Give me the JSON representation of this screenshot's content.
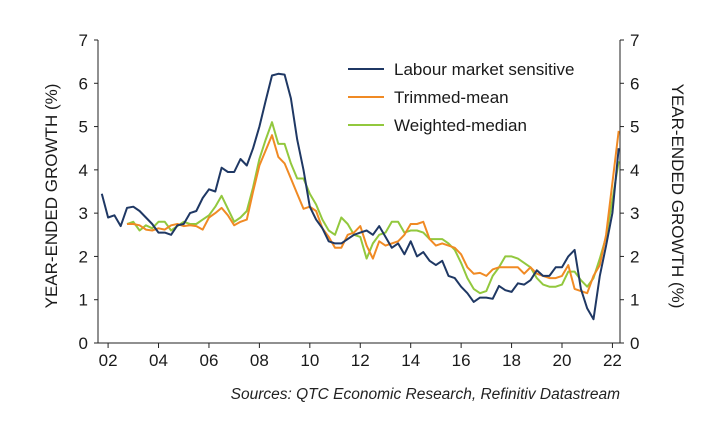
{
  "chart_data": {
    "type": "line",
    "ylabel_left": "YEAR-ENDED GROWTH (%)",
    "ylabel_right": "YEAR-ENDED GROWTH (%)",
    "ylim": [
      0,
      7
    ],
    "xlim": [
      2001.6,
      2022.3
    ],
    "y_ticks": [
      "0",
      "1",
      "2",
      "3",
      "4",
      "5",
      "6",
      "7"
    ],
    "x_ticks": [
      {
        "value": 2002,
        "label": "02"
      },
      {
        "value": 2004,
        "label": "04"
      },
      {
        "value": 2006,
        "label": "06"
      },
      {
        "value": 2008,
        "label": "08"
      },
      {
        "value": 2010,
        "label": "10"
      },
      {
        "value": 2012,
        "label": "12"
      },
      {
        "value": 2014,
        "label": "14"
      },
      {
        "value": 2016,
        "label": "16"
      },
      {
        "value": 2018,
        "label": "18"
      },
      {
        "value": 2020,
        "label": "20"
      },
      {
        "value": 2022,
        "label": "22"
      }
    ],
    "legend_position": "top-right",
    "grid": false,
    "series": [
      {
        "name": "Labour market sensitive",
        "color": "#1f3864",
        "points": [
          [
            2001.75,
            3.45
          ],
          [
            2002.0,
            2.9
          ],
          [
            2002.25,
            2.95
          ],
          [
            2002.5,
            2.7
          ],
          [
            2002.75,
            3.12
          ],
          [
            2003.0,
            3.15
          ],
          [
            2003.25,
            3.05
          ],
          [
            2003.5,
            2.9
          ],
          [
            2003.75,
            2.75
          ],
          [
            2004.0,
            2.55
          ],
          [
            2004.25,
            2.55
          ],
          [
            2004.5,
            2.5
          ],
          [
            2004.75,
            2.72
          ],
          [
            2005.0,
            2.75
          ],
          [
            2005.25,
            3.0
          ],
          [
            2005.5,
            3.05
          ],
          [
            2005.75,
            3.35
          ],
          [
            2006.0,
            3.55
          ],
          [
            2006.25,
            3.5
          ],
          [
            2006.5,
            4.05
          ],
          [
            2006.75,
            3.95
          ],
          [
            2007.0,
            3.95
          ],
          [
            2007.25,
            4.25
          ],
          [
            2007.5,
            4.1
          ],
          [
            2007.75,
            4.5
          ],
          [
            2008.0,
            5.0
          ],
          [
            2008.25,
            5.6
          ],
          [
            2008.5,
            6.18
          ],
          [
            2008.75,
            6.22
          ],
          [
            2009.0,
            6.2
          ],
          [
            2009.25,
            5.65
          ],
          [
            2009.5,
            4.7
          ],
          [
            2009.75,
            4.0
          ],
          [
            2010.0,
            3.15
          ],
          [
            2010.25,
            2.85
          ],
          [
            2010.5,
            2.65
          ],
          [
            2010.75,
            2.35
          ],
          [
            2011.0,
            2.3
          ],
          [
            2011.25,
            2.3
          ],
          [
            2011.5,
            2.4
          ],
          [
            2011.75,
            2.5
          ],
          [
            2012.0,
            2.55
          ],
          [
            2012.25,
            2.6
          ],
          [
            2012.5,
            2.5
          ],
          [
            2012.75,
            2.7
          ],
          [
            2013.0,
            2.45
          ],
          [
            2013.25,
            2.2
          ],
          [
            2013.5,
            2.3
          ],
          [
            2013.75,
            2.05
          ],
          [
            2014.0,
            2.35
          ],
          [
            2014.25,
            2.0
          ],
          [
            2014.5,
            2.1
          ],
          [
            2014.75,
            1.9
          ],
          [
            2015.0,
            1.8
          ],
          [
            2015.25,
            1.9
          ],
          [
            2015.5,
            1.55
          ],
          [
            2015.75,
            1.5
          ],
          [
            2016.0,
            1.3
          ],
          [
            2016.25,
            1.15
          ],
          [
            2016.5,
            0.95
          ],
          [
            2016.75,
            1.05
          ],
          [
            2017.0,
            1.05
          ],
          [
            2017.25,
            1.02
          ],
          [
            2017.5,
            1.32
          ],
          [
            2017.75,
            1.22
          ],
          [
            2018.0,
            1.18
          ],
          [
            2018.25,
            1.38
          ],
          [
            2018.5,
            1.35
          ],
          [
            2018.75,
            1.45
          ],
          [
            2019.0,
            1.68
          ],
          [
            2019.25,
            1.55
          ],
          [
            2019.5,
            1.55
          ],
          [
            2019.75,
            1.75
          ],
          [
            2020.0,
            1.75
          ],
          [
            2020.25,
            2.0
          ],
          [
            2020.5,
            2.15
          ],
          [
            2020.75,
            1.25
          ],
          [
            2021.0,
            0.8
          ],
          [
            2021.25,
            0.55
          ],
          [
            2021.5,
            1.55
          ],
          [
            2021.75,
            2.25
          ],
          [
            2022.0,
            3.0
          ],
          [
            2022.25,
            4.5
          ]
        ]
      },
      {
        "name": "Trimmed-mean",
        "color": "#f08a24",
        "points": [
          [
            2002.75,
            2.75
          ],
          [
            2003.0,
            2.75
          ],
          [
            2003.25,
            2.72
          ],
          [
            2003.5,
            2.62
          ],
          [
            2003.75,
            2.6
          ],
          [
            2004.0,
            2.65
          ],
          [
            2004.25,
            2.62
          ],
          [
            2004.5,
            2.72
          ],
          [
            2004.75,
            2.75
          ],
          [
            2005.0,
            2.7
          ],
          [
            2005.25,
            2.72
          ],
          [
            2005.5,
            2.7
          ],
          [
            2005.75,
            2.62
          ],
          [
            2006.0,
            2.9
          ],
          [
            2006.25,
            3.0
          ],
          [
            2006.5,
            3.12
          ],
          [
            2006.75,
            2.95
          ],
          [
            2007.0,
            2.72
          ],
          [
            2007.25,
            2.8
          ],
          [
            2007.5,
            2.85
          ],
          [
            2007.75,
            3.5
          ],
          [
            2008.0,
            4.1
          ],
          [
            2008.25,
            4.45
          ],
          [
            2008.5,
            4.8
          ],
          [
            2008.75,
            4.3
          ],
          [
            2009.0,
            4.15
          ],
          [
            2009.25,
            3.8
          ],
          [
            2009.5,
            3.45
          ],
          [
            2009.75,
            3.1
          ],
          [
            2010.0,
            3.15
          ],
          [
            2010.25,
            3.05
          ],
          [
            2010.5,
            2.65
          ],
          [
            2010.75,
            2.45
          ],
          [
            2011.0,
            2.2
          ],
          [
            2011.25,
            2.2
          ],
          [
            2011.5,
            2.5
          ],
          [
            2011.75,
            2.55
          ],
          [
            2012.0,
            2.7
          ],
          [
            2012.25,
            2.25
          ],
          [
            2012.5,
            1.95
          ],
          [
            2012.75,
            2.35
          ],
          [
            2013.0,
            2.25
          ],
          [
            2013.25,
            2.3
          ],
          [
            2013.5,
            2.35
          ],
          [
            2013.75,
            2.5
          ],
          [
            2014.0,
            2.75
          ],
          [
            2014.25,
            2.75
          ],
          [
            2014.5,
            2.8
          ],
          [
            2014.75,
            2.4
          ],
          [
            2015.0,
            2.25
          ],
          [
            2015.25,
            2.3
          ],
          [
            2015.5,
            2.25
          ],
          [
            2015.75,
            2.2
          ],
          [
            2016.0,
            2.05
          ],
          [
            2016.25,
            1.75
          ],
          [
            2016.5,
            1.6
          ],
          [
            2016.75,
            1.62
          ],
          [
            2017.0,
            1.55
          ],
          [
            2017.25,
            1.7
          ],
          [
            2017.5,
            1.75
          ],
          [
            2017.75,
            1.75
          ],
          [
            2018.0,
            1.75
          ],
          [
            2018.25,
            1.75
          ],
          [
            2018.5,
            1.6
          ],
          [
            2018.75,
            1.75
          ],
          [
            2019.0,
            1.6
          ],
          [
            2019.25,
            1.55
          ],
          [
            2019.5,
            1.5
          ],
          [
            2019.75,
            1.5
          ],
          [
            2020.0,
            1.55
          ],
          [
            2020.25,
            1.8
          ],
          [
            2020.5,
            1.25
          ],
          [
            2020.75,
            1.2
          ],
          [
            2021.0,
            1.15
          ],
          [
            2021.25,
            1.55
          ],
          [
            2021.5,
            1.8
          ],
          [
            2021.75,
            2.5
          ],
          [
            2022.0,
            3.7
          ],
          [
            2022.25,
            4.9
          ]
        ]
      },
      {
        "name": "Weighted-median",
        "color": "#92c83e",
        "points": [
          [
            2002.75,
            2.75
          ],
          [
            2003.0,
            2.8
          ],
          [
            2003.25,
            2.6
          ],
          [
            2003.5,
            2.72
          ],
          [
            2003.75,
            2.65
          ],
          [
            2004.0,
            2.8
          ],
          [
            2004.25,
            2.8
          ],
          [
            2004.5,
            2.6
          ],
          [
            2004.75,
            2.7
          ],
          [
            2005.0,
            2.8
          ],
          [
            2005.25,
            2.75
          ],
          [
            2005.5,
            2.75
          ],
          [
            2005.75,
            2.85
          ],
          [
            2006.0,
            2.95
          ],
          [
            2006.25,
            3.15
          ],
          [
            2006.5,
            3.4
          ],
          [
            2006.75,
            3.1
          ],
          [
            2007.0,
            2.8
          ],
          [
            2007.25,
            2.9
          ],
          [
            2007.5,
            3.05
          ],
          [
            2007.75,
            3.6
          ],
          [
            2008.0,
            4.25
          ],
          [
            2008.25,
            4.7
          ],
          [
            2008.5,
            5.1
          ],
          [
            2008.75,
            4.6
          ],
          [
            2009.0,
            4.6
          ],
          [
            2009.25,
            4.15
          ],
          [
            2009.5,
            3.8
          ],
          [
            2009.75,
            3.8
          ],
          [
            2010.0,
            3.45
          ],
          [
            2010.25,
            3.2
          ],
          [
            2010.5,
            2.85
          ],
          [
            2010.75,
            2.6
          ],
          [
            2011.0,
            2.5
          ],
          [
            2011.25,
            2.9
          ],
          [
            2011.5,
            2.75
          ],
          [
            2011.75,
            2.5
          ],
          [
            2012.0,
            2.45
          ],
          [
            2012.25,
            1.95
          ],
          [
            2012.5,
            2.3
          ],
          [
            2012.75,
            2.5
          ],
          [
            2013.0,
            2.55
          ],
          [
            2013.25,
            2.8
          ],
          [
            2013.5,
            2.8
          ],
          [
            2013.75,
            2.55
          ],
          [
            2014.0,
            2.6
          ],
          [
            2014.25,
            2.6
          ],
          [
            2014.5,
            2.55
          ],
          [
            2014.75,
            2.4
          ],
          [
            2015.0,
            2.4
          ],
          [
            2015.25,
            2.4
          ],
          [
            2015.5,
            2.3
          ],
          [
            2015.75,
            2.15
          ],
          [
            2016.0,
            1.85
          ],
          [
            2016.25,
            1.5
          ],
          [
            2016.5,
            1.25
          ],
          [
            2016.75,
            1.15
          ],
          [
            2017.0,
            1.2
          ],
          [
            2017.25,
            1.55
          ],
          [
            2017.5,
            1.75
          ],
          [
            2017.75,
            2.0
          ],
          [
            2018.0,
            2.0
          ],
          [
            2018.25,
            1.95
          ],
          [
            2018.5,
            1.85
          ],
          [
            2018.75,
            1.75
          ],
          [
            2019.0,
            1.5
          ],
          [
            2019.25,
            1.35
          ],
          [
            2019.5,
            1.3
          ],
          [
            2019.75,
            1.3
          ],
          [
            2020.0,
            1.35
          ],
          [
            2020.25,
            1.65
          ],
          [
            2020.5,
            1.65
          ],
          [
            2020.75,
            1.45
          ],
          [
            2021.0,
            1.3
          ],
          [
            2021.25,
            1.5
          ],
          [
            2021.5,
            1.95
          ],
          [
            2021.75,
            2.45
          ],
          [
            2022.0,
            3.3
          ],
          [
            2022.25,
            4.2
          ]
        ]
      }
    ]
  },
  "source_note": "Sources: QTC Economic Research, Refinitiv Datastream"
}
